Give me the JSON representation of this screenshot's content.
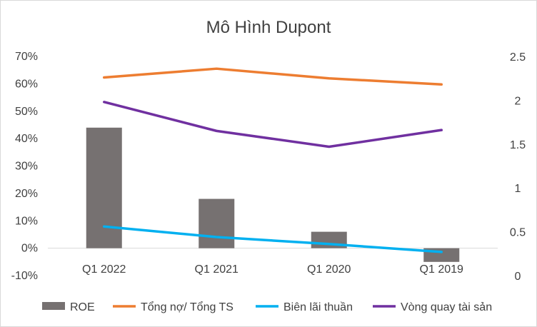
{
  "chart_data": {
    "type": "bar+line",
    "title": "Mô Hình Dupont",
    "categories": [
      "Q1 2022",
      "Q1 2021",
      "Q1 2020",
      "Q1 2019"
    ],
    "series": [
      {
        "name": "ROE",
        "type": "bar",
        "axis": "left",
        "color": "#767171",
        "values": [
          0.44,
          0.18,
          0.06,
          -0.05
        ]
      },
      {
        "name": "Tổng nợ/ Tổng TS",
        "type": "line",
        "axis": "right",
        "color": "#ED7D31",
        "values": [
          2.26,
          2.36,
          2.25,
          2.18
        ]
      },
      {
        "name": "Biên lãi thuần",
        "type": "line",
        "axis": "right",
        "color": "#00B0F0",
        "values": [
          0.56,
          0.44,
          0.36,
          0.27
        ]
      },
      {
        "name": "Vòng quay tài sản",
        "type": "line",
        "axis": "right",
        "color": "#7030A0",
        "values": [
          1.98,
          1.65,
          1.47,
          1.66
        ]
      }
    ],
    "y_left": {
      "min": -0.1,
      "max": 0.7,
      "ticks": [
        -0.1,
        0,
        0.1,
        0.2,
        0.3,
        0.4,
        0.5,
        0.6,
        0.7
      ],
      "tick_labels": [
        "-10%",
        "0%",
        "10%",
        "20%",
        "30%",
        "40%",
        "50%",
        "60%",
        "70%"
      ]
    },
    "y_right": {
      "min": 0,
      "max": 2.5,
      "ticks": [
        0,
        0.5,
        1,
        1.5,
        2,
        2.5
      ],
      "tick_labels": [
        "0",
        "0.5",
        "1",
        "1.5",
        "2",
        "2.5"
      ]
    },
    "grid": false,
    "legend": "bottom"
  }
}
